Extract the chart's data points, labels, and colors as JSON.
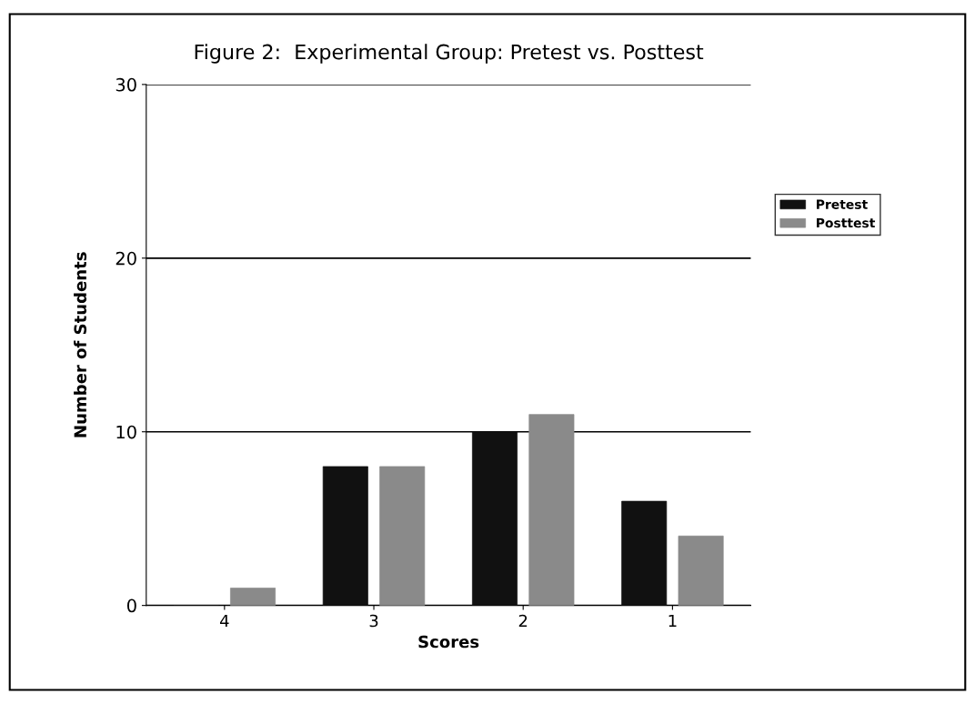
{
  "chart_data": {
    "type": "bar",
    "title": "Figure 2:  Experimental Group: Pretest vs. Posttest",
    "xlabel": "Scores",
    "ylabel": "Number of Students",
    "categories": [
      "4",
      "3",
      "2",
      "1"
    ],
    "series": [
      {
        "name": "Pretest",
        "color": "#111111",
        "values": [
          0,
          8,
          10,
          6
        ]
      },
      {
        "name": "Posttest",
        "color": "#8a8a8a",
        "values": [
          1,
          8,
          11,
          4
        ]
      }
    ],
    "ylim": [
      0,
      30
    ],
    "yticks": [
      0,
      10,
      20,
      30
    ],
    "grid": "y",
    "legend": "right"
  }
}
